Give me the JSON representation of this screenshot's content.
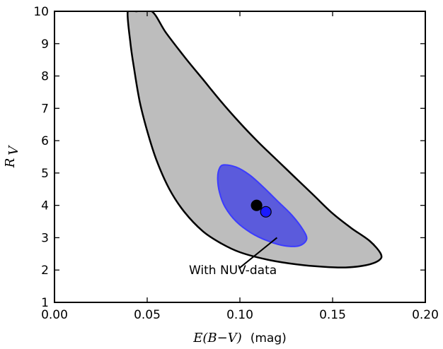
{
  "chart_data": {
    "type": "contour",
    "xlabel_math": "E(B−V)",
    "xlabel_unit": "(mag)",
    "ylabel_main": "R",
    "ylabel_sub": "V",
    "xlim": [
      0.0,
      0.2
    ],
    "ylim": [
      1,
      10
    ],
    "xticks": [
      "0.00",
      "0.05",
      "0.10",
      "0.15",
      "0.20"
    ],
    "yticks": [
      "1",
      "2",
      "3",
      "4",
      "5",
      "6",
      "7",
      "8",
      "9",
      "10"
    ],
    "grid": false,
    "colors": {
      "outer_fill": "#bdbdbd",
      "inner_fill": "#5b5bdc",
      "inner_edge": "#3b3bff",
      "outline": "#000000",
      "point_black": "#000000",
      "point_blue": "#1a1aff"
    },
    "regions": [
      {
        "fill": "#bdbdbd",
        "outline": "#000000",
        "boundary": [
          [
            0.044,
            10.0
          ],
          [
            0.0525,
            10.0
          ],
          [
            0.06,
            9.35
          ],
          [
            0.07,
            8.6
          ],
          [
            0.08,
            7.9
          ],
          [
            0.09,
            7.2
          ],
          [
            0.1,
            6.55
          ],
          [
            0.11,
            5.95
          ],
          [
            0.12,
            5.4
          ],
          [
            0.13,
            4.85
          ],
          [
            0.14,
            4.3
          ],
          [
            0.15,
            3.75
          ],
          [
            0.16,
            3.3
          ],
          [
            0.17,
            2.9
          ],
          [
            0.176,
            2.5
          ],
          [
            0.175,
            2.3
          ],
          [
            0.168,
            2.15
          ],
          [
            0.157,
            2.08
          ],
          [
            0.145,
            2.1
          ],
          [
            0.13,
            2.18
          ],
          [
            0.115,
            2.32
          ],
          [
            0.1,
            2.55
          ],
          [
            0.09,
            2.82
          ],
          [
            0.08,
            3.2
          ],
          [
            0.07,
            3.8
          ],
          [
            0.062,
            4.5
          ],
          [
            0.055,
            5.4
          ],
          [
            0.05,
            6.3
          ],
          [
            0.046,
            7.2
          ],
          [
            0.043,
            8.2
          ],
          [
            0.041,
            9.0
          ],
          [
            0.0395,
            10.0
          ]
        ]
      },
      {
        "fill": "#5b5bdc",
        "outline": "#3b3bff",
        "boundary": [
          [
            0.0915,
            5.25
          ],
          [
            0.098,
            5.18
          ],
          [
            0.105,
            4.95
          ],
          [
            0.112,
            4.6
          ],
          [
            0.12,
            4.15
          ],
          [
            0.128,
            3.7
          ],
          [
            0.134,
            3.25
          ],
          [
            0.136,
            2.95
          ],
          [
            0.132,
            2.75
          ],
          [
            0.124,
            2.75
          ],
          [
            0.115,
            2.9
          ],
          [
            0.106,
            3.15
          ],
          [
            0.098,
            3.5
          ],
          [
            0.092,
            3.95
          ],
          [
            0.089,
            4.4
          ],
          [
            0.088,
            4.85
          ],
          [
            0.089,
            5.15
          ]
        ]
      }
    ],
    "points": [
      {
        "x": 0.109,
        "y": 4.0,
        "color": "#000000"
      },
      {
        "x": 0.114,
        "y": 3.8,
        "color": "#1a1aff"
      }
    ],
    "annotation": {
      "text": "With NUV-data",
      "text_x": 0.0725,
      "text_y": 2.0,
      "arrow_from": [
        0.0995,
        2.05
      ],
      "arrow_to": [
        0.12,
        3.0
      ]
    }
  }
}
